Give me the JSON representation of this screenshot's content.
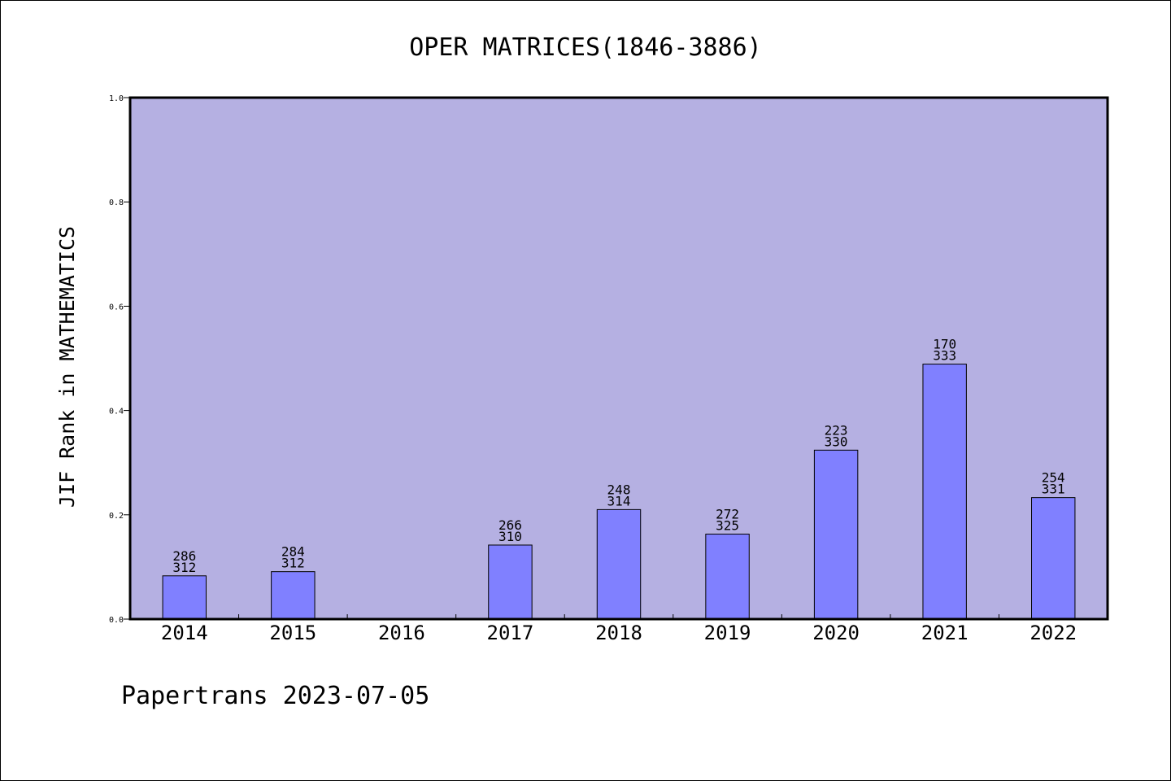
{
  "chart_data": {
    "type": "bar",
    "title": "OPER MATRICES(1846-3886)",
    "xlabel": "",
    "ylabel": "JIF Rank in MATHEMATICS",
    "ylim": [
      0,
      1.0
    ],
    "yticks": [
      "0.0",
      "0.2",
      "0.4",
      "0.6",
      "0.8",
      "1.0"
    ],
    "categories": [
      "2014",
      "2015",
      "2016",
      "2017",
      "2018",
      "2019",
      "2020",
      "2021",
      "2022"
    ],
    "values": [
      0.083,
      0.091,
      null,
      0.142,
      0.21,
      0.163,
      0.324,
      0.489,
      0.233
    ],
    "labels": [
      {
        "rank": "286",
        "total": "312"
      },
      {
        "rank": "284",
        "total": "312"
      },
      null,
      {
        "rank": "266",
        "total": "310"
      },
      {
        "rank": "248",
        "total": "314"
      },
      {
        "rank": "272",
        "total": "325"
      },
      {
        "rank": "223",
        "total": "330"
      },
      {
        "rank": "170",
        "total": "333"
      },
      {
        "rank": "254",
        "total": "331"
      }
    ],
    "grid": false,
    "colors": {
      "plot_background": "#b5b0e2",
      "bar": "#8080ff",
      "bar_edge": "#000000"
    }
  },
  "footer": "Papertrans 2023-07-05"
}
